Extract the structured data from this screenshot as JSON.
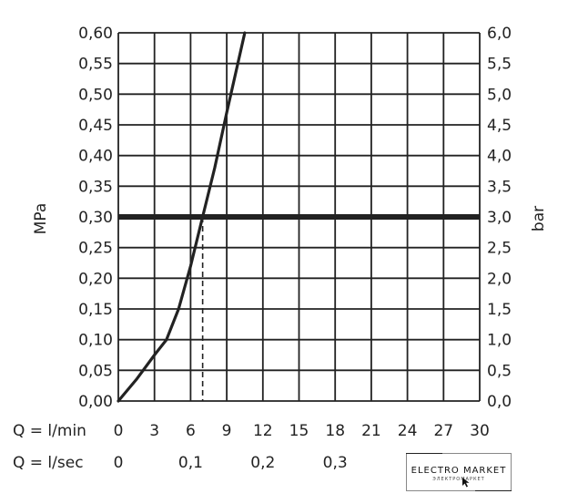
{
  "chart_data": {
    "type": "line",
    "title": "",
    "y_left_label": "MPa",
    "y_right_label": "bar",
    "x_row1_label": "Q = l/min",
    "x_row2_label": "Q = l/sec",
    "x_ticks_lmin": [
      "0",
      "3",
      "6",
      "9",
      "12",
      "15",
      "18",
      "21",
      "24",
      "27",
      "30"
    ],
    "x_ticks_lsec": [
      {
        "value": 0,
        "label": "0"
      },
      {
        "value": 0.1,
        "label": "0,1"
      },
      {
        "value": 0.2,
        "label": "0,2"
      },
      {
        "value": 0.3,
        "label": "0,3"
      }
    ],
    "y_left_ticks": [
      "0,00",
      "0,05",
      "0,10",
      "0,15",
      "0,20",
      "0,25",
      "0,30",
      "0,35",
      "0,40",
      "0,45",
      "0,50",
      "0,55",
      "0,60"
    ],
    "y_right_ticks": [
      "0,0",
      "0,5",
      "1,0",
      "1,5",
      "2,0",
      "2,5",
      "3,0",
      "3,5",
      "4,0",
      "4,5",
      "5,0",
      "5,5",
      "6,0"
    ],
    "xlim": [
      0,
      30
    ],
    "ylim": [
      0,
      0.6
    ],
    "grid": true,
    "series": [
      {
        "x": [
          0,
          1.5,
          3,
          4,
          5,
          6,
          7,
          8,
          9,
          10.5
        ],
        "y": [
          0,
          0.035,
          0.075,
          0.1,
          0.15,
          0.22,
          0.3,
          0.38,
          0.47,
          0.6
        ]
      }
    ],
    "reference_line": {
      "y": 0.3
    },
    "reference_drop": {
      "x": 7,
      "y": 0.3
    }
  },
  "watermark": {
    "title": "ELECTRO MARKET",
    "subtitle": "ЭЛЕКТРОМАРКЕТ"
  },
  "colors": {
    "line": "#222222",
    "grid": "#222222"
  }
}
